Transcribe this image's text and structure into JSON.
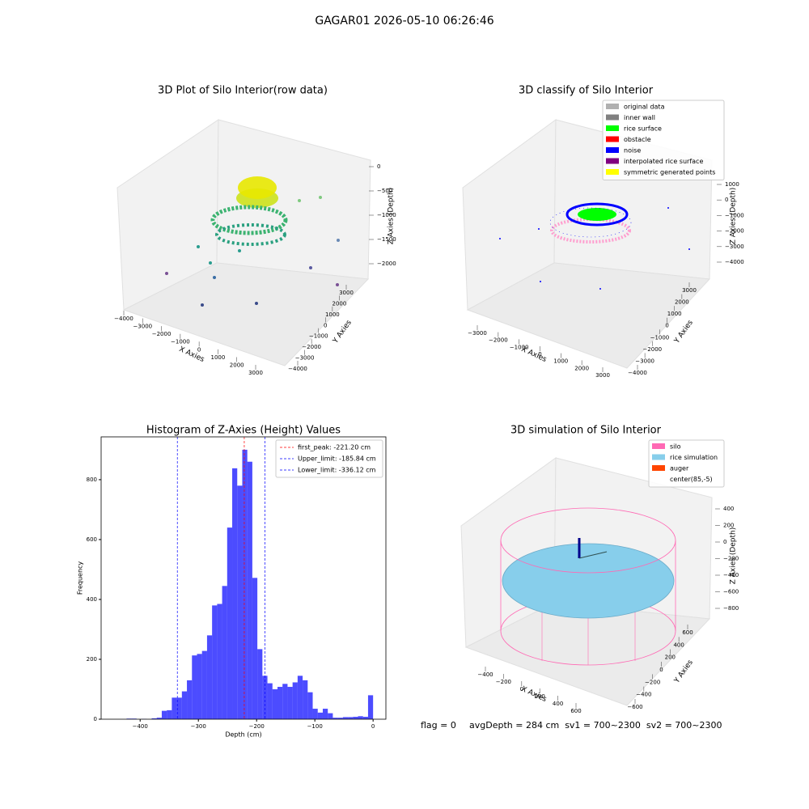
{
  "title": "GAGAR01 2026-05-10 06:26:46",
  "status": {
    "flag": "flag = 0",
    "info": "avgDepth = 284 cm  sv1 = 700~2300  sv2 = 700~2300"
  },
  "chart_data": [
    {
      "type": "scatter3d",
      "title": "3D Plot of Silo Interior(row data)",
      "xlabel": "X Axies",
      "ylabel": "Y Axies",
      "zlabel": "Z Axies (Depth)",
      "xticks": [
        {
          "value": -4000,
          "label": "−4000"
        },
        {
          "value": -3000,
          "label": "−3000"
        },
        {
          "value": -2000,
          "label": "−2000"
        },
        {
          "value": -1000,
          "label": "−1000"
        },
        0,
        1000,
        2000,
        3000
      ],
      "yticks": [
        {
          "value": -4000,
          "label": "−4000"
        },
        {
          "value": -3000,
          "label": "−3000"
        },
        {
          "value": -2000,
          "label": "−2000"
        },
        {
          "value": -1000,
          "label": "−1000"
        },
        0,
        1000,
        2000,
        3000
      ],
      "zticks": [
        0,
        {
          "value": -500,
          "label": "−500"
        },
        {
          "value": -1000,
          "label": "−1000"
        },
        {
          "value": -1500,
          "label": "−1500"
        },
        {
          "value": -2000,
          "label": "−2000"
        }
      ]
    },
    {
      "type": "scatter3d",
      "title": "3D classify of Silo Interior",
      "xlabel": "X Axies",
      "ylabel": "Y Axies",
      "zlabel": "Z Axies (Depth)",
      "xticks": [
        {
          "value": -3000,
          "label": "−3000"
        },
        {
          "value": -2000,
          "label": "−2000"
        },
        {
          "value": -1000,
          "label": "−1000"
        },
        0,
        1000,
        2000,
        3000
      ],
      "yticks": [
        {
          "value": -4000,
          "label": "−4000"
        },
        {
          "value": -3000,
          "label": "−3000"
        },
        {
          "value": -2000,
          "label": "−2000"
        },
        {
          "value": -1000,
          "label": "−1000"
        },
        0,
        1000,
        2000,
        3000
      ],
      "zticks": [
        1000,
        0,
        {
          "value": -1000,
          "label": "−1000"
        },
        {
          "value": -2000,
          "label": "−2000"
        },
        {
          "value": -3000,
          "label": "−3000"
        },
        {
          "value": -4000,
          "label": "−4000"
        }
      ],
      "legend": [
        {
          "name": "original data",
          "color": "#b0b0b0"
        },
        {
          "name": "inner wall",
          "color": "#808080"
        },
        {
          "name": "rice surface",
          "color": "#00ff00"
        },
        {
          "name": "obstacle",
          "color": "#ff0000"
        },
        {
          "name": "noise",
          "color": "#0000ff"
        },
        {
          "name": "interpolated rice surface",
          "color": "#800080"
        },
        {
          "name": "symmetric generated points",
          "color": "#ffff00"
        }
      ]
    },
    {
      "type": "histogram",
      "title": "Histogram of Z-Axies (Height) Values",
      "xlabel": "Depth (cm)",
      "ylabel": "Frequency",
      "color": "#0000ff",
      "bins": [
        -432,
        -423.36,
        -414.72,
        -406.08,
        -397.44,
        -388.8,
        -380.16,
        -371.52,
        -362.88,
        -354.24,
        -345.6,
        -336.96,
        -328.32,
        -319.68,
        -311.04,
        -302.4,
        -293.76,
        -285.12,
        -276.48,
        -267.84,
        -259.2,
        -250.56,
        -241.92,
        -233.28,
        -224.64,
        -216,
        -207.36,
        -198.72,
        -190.08,
        -181.44,
        -172.8,
        -164.16,
        -155.52,
        -146.88,
        -138.24,
        -129.6,
        -120.96,
        -112.32,
        -103.68,
        -95.04,
        -86.4,
        -77.76,
        -69.12,
        -60.48,
        -51.84,
        -43.2,
        -34.56,
        -25.92,
        -17.28,
        -8.64,
        0
      ],
      "values": [
        0,
        2,
        2,
        0,
        1,
        0,
        3,
        5,
        28,
        30,
        72,
        72,
        93,
        130,
        213,
        218,
        228,
        280,
        380,
        385,
        445,
        640,
        838,
        780,
        900,
        860,
        472,
        234,
        145,
        120,
        100,
        108,
        118,
        108,
        123,
        145,
        130,
        90,
        35,
        22,
        35,
        20,
        5,
        5,
        7,
        7,
        8,
        10,
        8,
        80
      ],
      "vlines": [
        {
          "value": -221.2,
          "label": "first_peak: -221.20 cm",
          "color": "#ff0000"
        },
        {
          "value": -185.84,
          "label": "Upper_limit: -185.84 cm",
          "color": "#0000ff"
        },
        {
          "value": -336.12,
          "label": "Lower_limit: -336.12 cm",
          "color": "#0000ff"
        }
      ],
      "xlim": [
        -467,
        22
      ],
      "ylim": [
        0,
        943
      ],
      "xticks": [
        {
          "value": -400,
          "label": "−400"
        },
        {
          "value": -300,
          "label": "−300"
        },
        {
          "value": -200,
          "label": "−200"
        },
        {
          "value": -100,
          "label": "−100"
        },
        0
      ],
      "yticks": [
        0,
        200,
        400,
        600,
        800
      ],
      "legend_position": "upper right"
    },
    {
      "type": "surface3d",
      "title": "3D simulation of Silo Interior",
      "xlabel": "X Axies",
      "ylabel": "Y Axies",
      "zlabel": "Z Axies (Depth)",
      "xticks": [
        {
          "value": -400,
          "label": "−400"
        },
        {
          "value": -200,
          "label": "−200"
        },
        0,
        200,
        400,
        600
      ],
      "yticks": [
        {
          "value": -600,
          "label": "−600"
        },
        {
          "value": -400,
          "label": "−400"
        },
        {
          "value": -200,
          "label": "−200"
        },
        0,
        200,
        400,
        600
      ],
      "zticks": [
        400,
        200,
        0,
        {
          "value": -200,
          "label": "−200"
        },
        {
          "value": -400,
          "label": "−400"
        },
        {
          "value": -600,
          "label": "−600"
        },
        {
          "value": -800,
          "label": "−800"
        }
      ],
      "legend": [
        {
          "name": "silo",
          "color": "#ff69b4"
        },
        {
          "name": "rice simulation",
          "color": "#87ceeb"
        },
        {
          "name": "auger",
          "color": "#ff4500"
        },
        {
          "name": "center(85,-5)",
          "color": "#ffffff"
        }
      ]
    }
  ]
}
